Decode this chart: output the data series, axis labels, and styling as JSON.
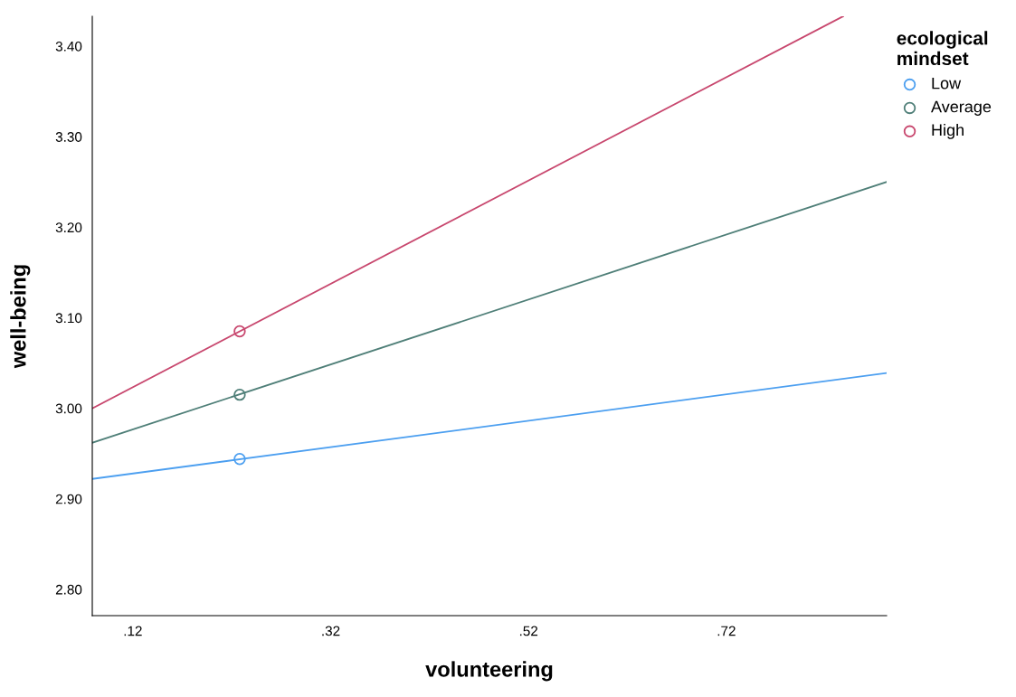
{
  "chart_data": {
    "type": "line",
    "xlabel": "volunteering",
    "ylabel": "well-being",
    "legend_title": "ecological\nmindset",
    "legend": "top right",
    "grid": false,
    "xlim": [
      0.079,
      0.882
    ],
    "ylim": [
      2.771,
      3.433
    ],
    "xticks": [
      {
        "value": 0.12,
        "label": ".12"
      },
      {
        "value": 0.32,
        "label": ".32"
      },
      {
        "value": 0.52,
        "label": ".52"
      },
      {
        "value": 0.72,
        "label": ".72"
      }
    ],
    "yticks": [
      {
        "value": 2.8,
        "label": "2.80"
      },
      {
        "value": 2.9,
        "label": "2.90"
      },
      {
        "value": 3.0,
        "label": "3.00"
      },
      {
        "value": 3.1,
        "label": "3.10"
      },
      {
        "value": 3.2,
        "label": "3.20"
      },
      {
        "value": 3.3,
        "label": "3.30"
      },
      {
        "value": 3.4,
        "label": "3.40"
      }
    ],
    "series": [
      {
        "color": "#4c9ff0",
        "x": [
          0.079,
          0.882
        ],
        "values": [
          2.922,
          3.039
        ]
      },
      {
        "color": "#4f7f78",
        "x": [
          0.079,
          0.882
        ],
        "values": [
          2.962,
          3.25
        ]
      },
      {
        "color": "#c8476e",
        "x": [
          0.079,
          0.838
        ],
        "values": [
          3.0,
          3.433
        ]
      },
      {
        "type": "scatter",
        "name": "Low",
        "color": "#4c9ff0",
        "marker": "circle",
        "x": [
          0.228
        ],
        "values": [
          2.944
        ]
      },
      {
        "type": "scatter",
        "name": "Average",
        "color": "#4f7f78",
        "marker": "circle",
        "x": [
          0.228
        ],
        "values": [
          3.015
        ]
      },
      {
        "type": "scatter",
        "name": "High",
        "color": "#c8476e",
        "marker": "circle",
        "x": [
          0.228
        ],
        "values": [
          3.085
        ]
      }
    ]
  }
}
